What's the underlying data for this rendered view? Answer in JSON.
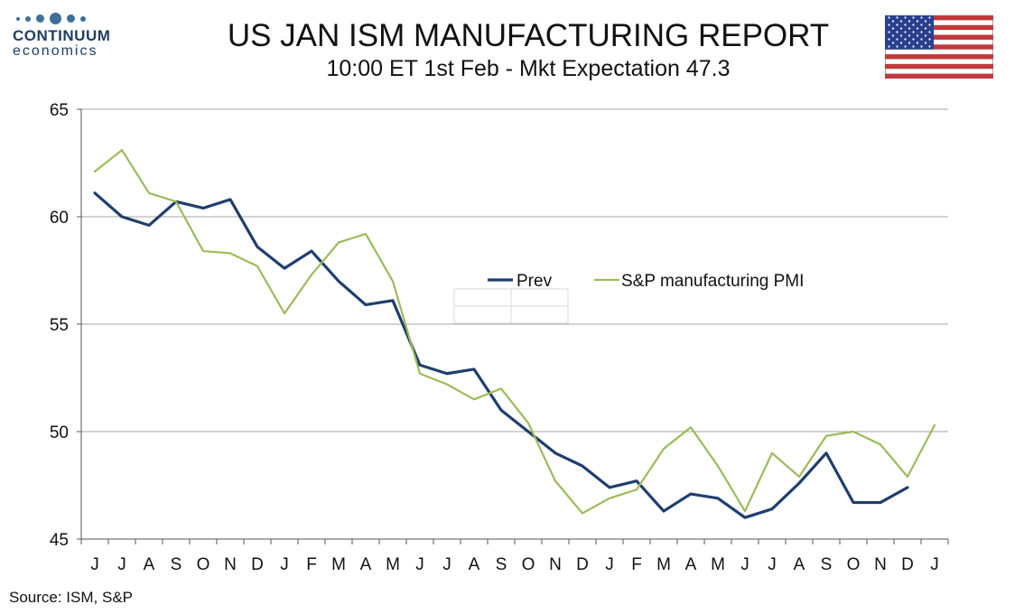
{
  "header": {
    "logo_name": "CONTINUUM",
    "logo_sub": "economics",
    "title": "US JAN ISM MANUFACTURING REPORT",
    "subtitle": "10:00 ET 1st Feb - Mkt Expectation 47.3",
    "flag_icon": "us-flag-icon"
  },
  "footer": {
    "source": "Source: ISM, S&P"
  },
  "chart_data": {
    "type": "line",
    "categories": [
      "J",
      "J",
      "A",
      "S",
      "O",
      "N",
      "D",
      "J",
      "F",
      "M",
      "A",
      "M",
      "J",
      "J",
      "A",
      "S",
      "O",
      "N",
      "D",
      "J",
      "F",
      "M",
      "A",
      "M",
      "J",
      "J",
      "A",
      "S",
      "O",
      "N",
      "D",
      "J"
    ],
    "ylim": [
      45,
      65
    ],
    "yticks": [
      45,
      50,
      55,
      60,
      65
    ],
    "grid": true,
    "legend_position": "center-right",
    "series": [
      {
        "name": "Prev",
        "color": "#1f3e6e",
        "values": [
          61.1,
          60.0,
          59.6,
          60.7,
          60.4,
          60.8,
          58.6,
          57.6,
          58.4,
          57.0,
          55.9,
          56.1,
          53.1,
          52.7,
          52.9,
          51.0,
          50.0,
          49.0,
          48.4,
          47.4,
          47.7,
          46.3,
          47.1,
          46.9,
          46.0,
          46.4,
          47.6,
          49.0,
          46.7,
          46.7,
          47.4,
          null
        ]
      },
      {
        "name": "S&P manufacturing PMI",
        "color": "#9bbb59",
        "values": [
          62.1,
          63.1,
          61.1,
          60.7,
          58.4,
          58.3,
          57.7,
          55.5,
          57.3,
          58.8,
          59.2,
          57.0,
          52.7,
          52.2,
          51.5,
          52.0,
          50.4,
          47.7,
          46.2,
          46.9,
          47.3,
          49.2,
          50.2,
          48.4,
          46.3,
          49.0,
          47.9,
          49.8,
          50.0,
          49.4,
          47.9,
          50.3
        ]
      }
    ],
    "xlabel": "",
    "ylabel": ""
  }
}
